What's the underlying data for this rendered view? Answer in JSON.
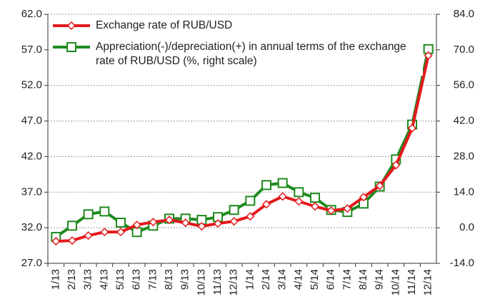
{
  "chart_data": {
    "type": "line",
    "categories": [
      "1/13",
      "2/13",
      "3/13",
      "4/13",
      "5/13",
      "6/13",
      "7/13",
      "8/13",
      "9/13",
      "10/13",
      "11/13",
      "12/13",
      "1/14",
      "2/14",
      "3/14",
      "4/14",
      "5/14",
      "6/14",
      "7/14",
      "8/14",
      "9/14",
      "10/14",
      "11/14",
      "12/14"
    ],
    "series": [
      {
        "name": "Exchange rate of RUB/USD",
        "color": "#e3191c",
        "marker": "diamond",
        "values": [
          30.1,
          30.2,
          30.9,
          31.4,
          31.4,
          32.4,
          32.8,
          33.1,
          32.7,
          32.2,
          32.6,
          32.9,
          33.6,
          35.3,
          36.4,
          35.7,
          35.0,
          34.4,
          34.7,
          36.3,
          37.9,
          40.8,
          46.0,
          56.2
        ]
      },
      {
        "name": "Appreciation(-)/depreciation(+) in annual terms of the exchange rate of RUB/USD (%, right scale)",
        "color": "#1f8a1f",
        "marker": "square",
        "axis": "y2",
        "values": [
          -3.6,
          0.8,
          5.3,
          6.4,
          2.0,
          -1.7,
          0.8,
          3.6,
          3.6,
          3.1,
          4.2,
          7.0,
          10.6,
          16.8,
          17.6,
          14.0,
          11.8,
          7.0,
          6.2,
          9.5,
          16.2,
          26.9,
          40.6,
          70.3
        ]
      }
    ],
    "ylim": [
      27,
      62
    ],
    "yticks": [
      {
        "value": 27,
        "label": "27.0"
      },
      {
        "value": 32,
        "label": "32.0"
      },
      {
        "value": 37,
        "label": "37.0"
      },
      {
        "value": 42,
        "label": "42.0"
      },
      {
        "value": 47,
        "label": "47.0"
      },
      {
        "value": 52,
        "label": "52.0"
      },
      {
        "value": 57,
        "label": "57.0"
      },
      {
        "value": 62,
        "label": "62.0"
      }
    ],
    "y2lim": [
      -14,
      84
    ],
    "y2ticks": [
      {
        "value": -14,
        "label": "-14.0"
      },
      {
        "value": 0,
        "label": "0.0"
      },
      {
        "value": 14,
        "label": "14.0"
      },
      {
        "value": 28,
        "label": "28.0"
      },
      {
        "value": 42,
        "label": "42.0"
      },
      {
        "value": 56,
        "label": "56.0"
      },
      {
        "value": 70,
        "label": "70.0"
      },
      {
        "value": 84,
        "label": "84.0"
      }
    ],
    "grid": true,
    "legend": "upper left"
  }
}
